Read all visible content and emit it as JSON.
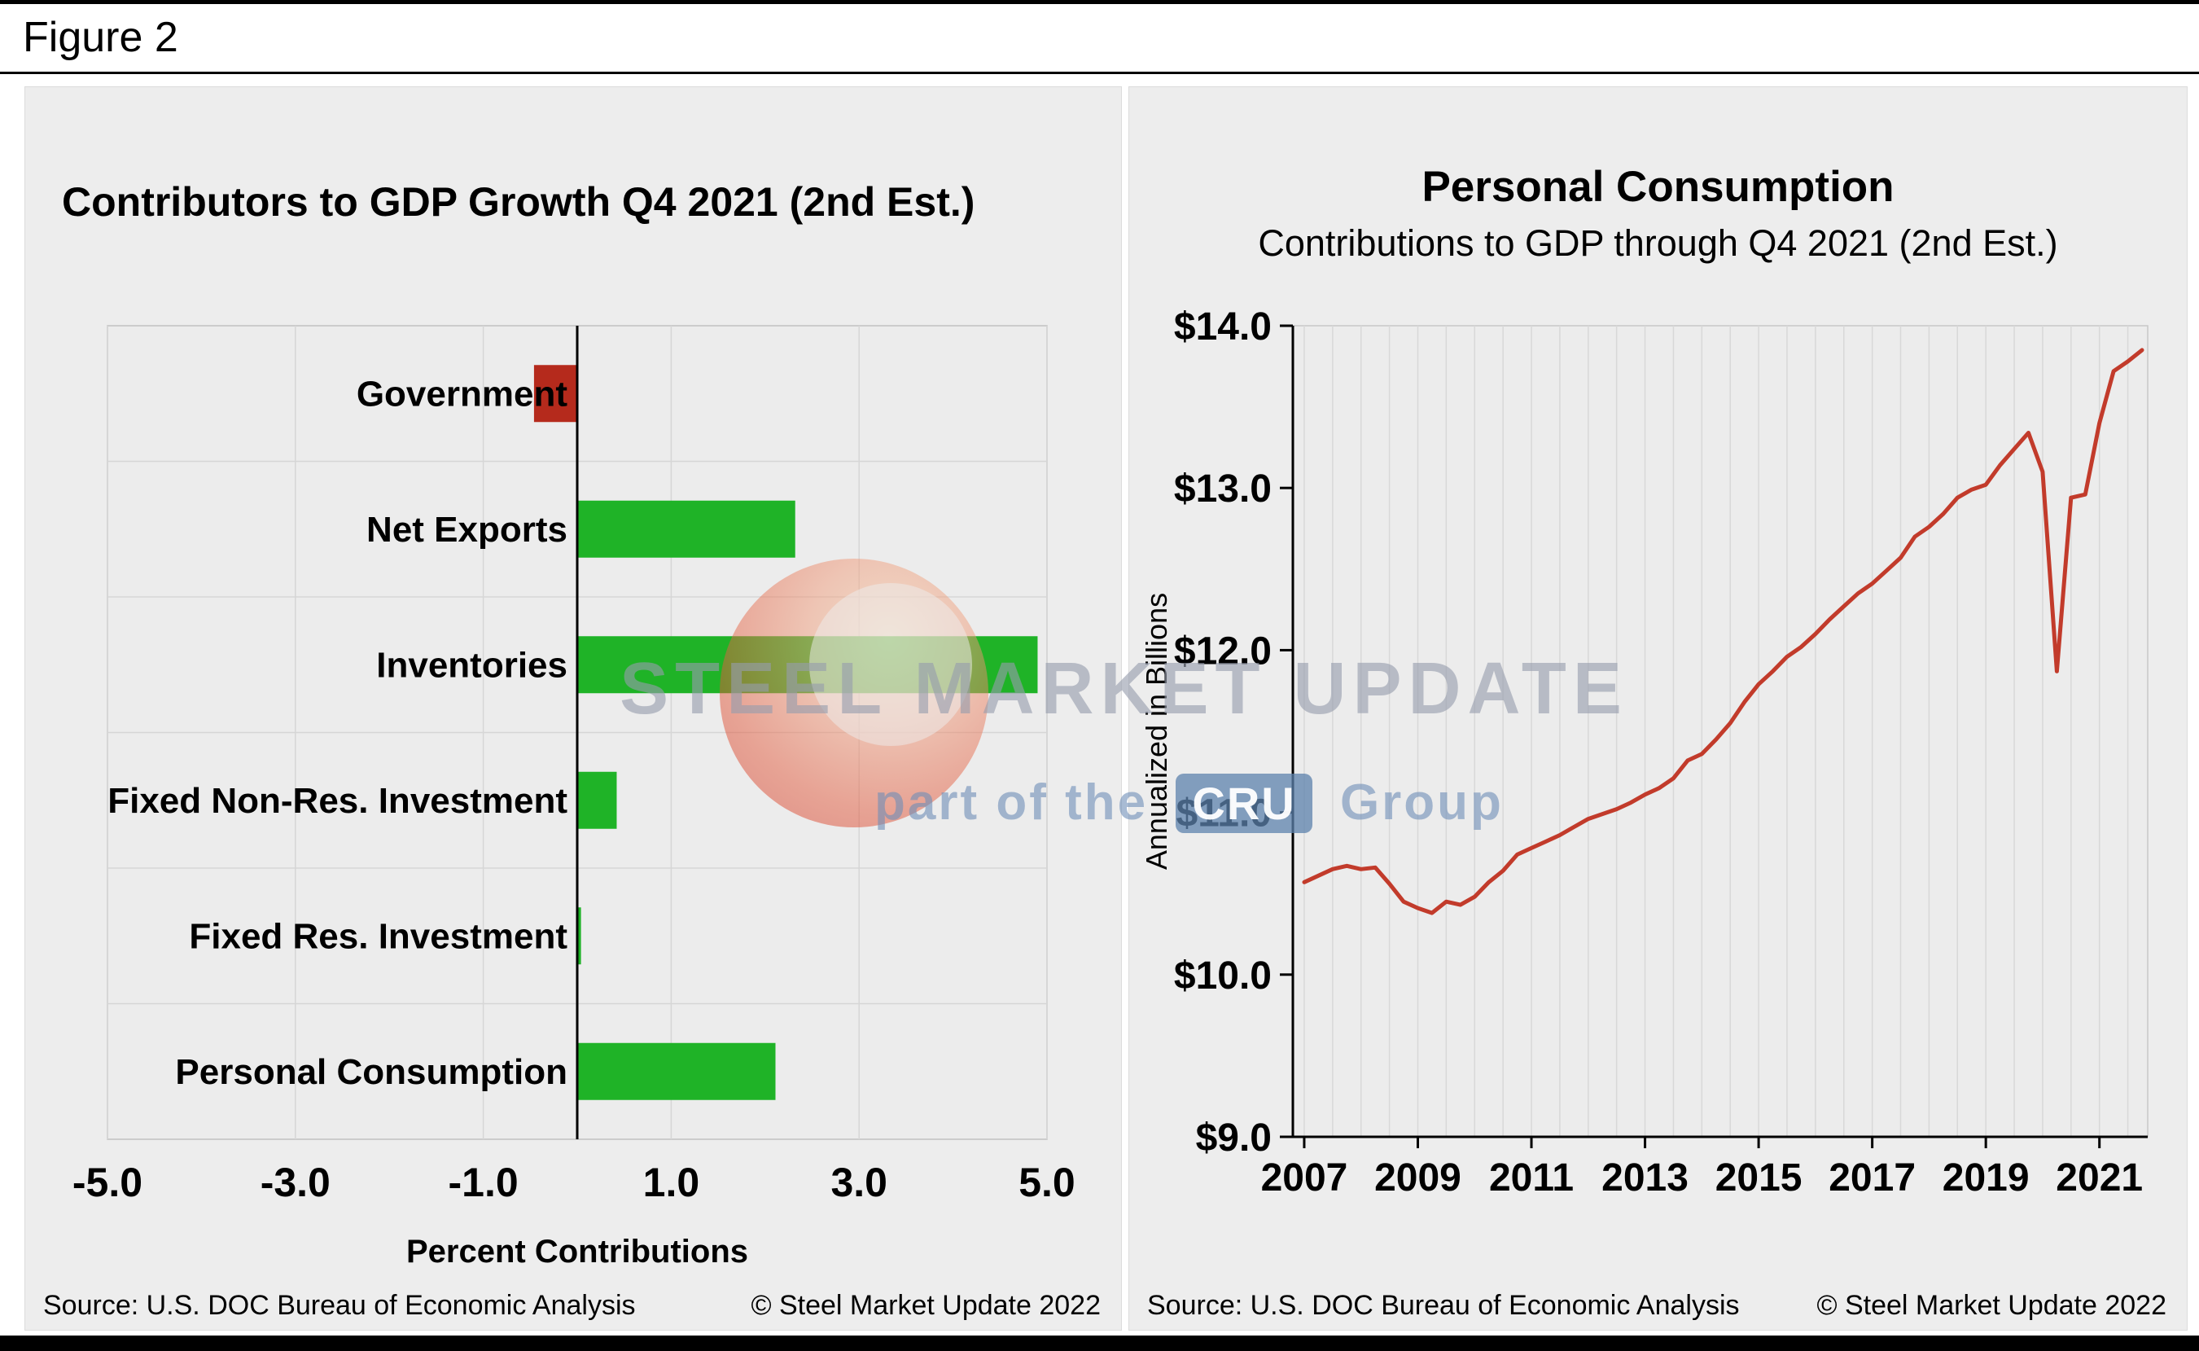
{
  "figure_label": "Figure 2",
  "watermark": {
    "line1": "STEEL MARKET UPDATE",
    "line2_prefix": "part of the",
    "line2_box": "CRU",
    "line2_suffix": "Group"
  },
  "left_panel": {
    "title": "Contributors to GDP Growth Q4 2021 (2nd Est.)",
    "xlabel": "Percent Contributions",
    "source": "Source: U.S. DOC Bureau of Economic Analysis",
    "copyright": "© Steel Market Update 2022"
  },
  "right_panel": {
    "title": "Personal Consumption",
    "subtitle": "Contributions to GDP through Q4 2021 (2nd Est.)",
    "ylabel": "Annualized in Billions",
    "source": "Source: U.S. DOC Bureau of Economic Analysis",
    "copyright": "© Steel Market Update 2022"
  },
  "chart_data": [
    {
      "type": "bar",
      "orientation": "horizontal",
      "title": "Contributors to GDP Growth Q4 2021 (2nd Est.)",
      "xlabel": "Percent Contributions",
      "categories": [
        "Government",
        "Net Exports",
        "Inventories",
        "Fixed Non-Res. Investment",
        "Fixed Res. Investment",
        "Personal Consumption"
      ],
      "values": [
        -0.46,
        2.32,
        4.9,
        0.42,
        0.04,
        2.11
      ],
      "bar_colors": [
        "#b52a1c",
        "#1fb327",
        "#1fb327",
        "#1fb327",
        "#1fb327",
        "#1fb327"
      ],
      "xlim": [
        -5,
        5
      ],
      "xticks": [
        {
          "v": -5,
          "label": "-5.0"
        },
        {
          "v": -3,
          "label": "-3.0"
        },
        {
          "v": -1,
          "label": "-1.0"
        },
        {
          "v": 1,
          "label": "1.0"
        },
        {
          "v": 3,
          "label": "3.0"
        },
        {
          "v": 5,
          "label": "5.0"
        }
      ],
      "grid": true,
      "zero_line": true
    },
    {
      "type": "line",
      "title": "Personal Consumption",
      "subtitle": "Contributions to GDP through Q4 2021 (2nd Est.)",
      "ylabel": "Annualized in Billions",
      "ylim": [
        9,
        14
      ],
      "yticks": [
        {
          "v": 9,
          "label": "$9.0"
        },
        {
          "v": 10,
          "label": "$10.0"
        },
        {
          "v": 11,
          "label": "$11.0"
        },
        {
          "v": 12,
          "label": "$12.0"
        },
        {
          "v": 13,
          "label": "$13.0"
        },
        {
          "v": 14,
          "label": "$14.0"
        }
      ],
      "xlim": [
        2006.8,
        2021.85
      ],
      "xticks": [
        2007,
        2009,
        2011,
        2013,
        2015,
        2017,
        2019,
        2021
      ],
      "x_start": 2007,
      "x_step": 0.25,
      "line_color": "#c23b2b",
      "grid_vertical_step": 0.5,
      "values": [
        10.57,
        10.61,
        10.65,
        10.67,
        10.65,
        10.66,
        10.56,
        10.45,
        10.41,
        10.38,
        10.45,
        10.43,
        10.48,
        10.57,
        10.64,
        10.74,
        10.78,
        10.82,
        10.86,
        10.91,
        10.96,
        10.99,
        11.02,
        11.06,
        11.11,
        11.15,
        11.21,
        11.32,
        11.36,
        11.45,
        11.55,
        11.68,
        11.79,
        11.87,
        11.96,
        12.02,
        12.1,
        12.19,
        12.27,
        12.35,
        12.41,
        12.49,
        12.57,
        12.7,
        12.76,
        12.84,
        12.94,
        12.99,
        13.02,
        13.14,
        13.24,
        13.34,
        13.1,
        11.87,
        12.94,
        12.96,
        13.4,
        13.72,
        13.78,
        13.85
      ]
    }
  ]
}
